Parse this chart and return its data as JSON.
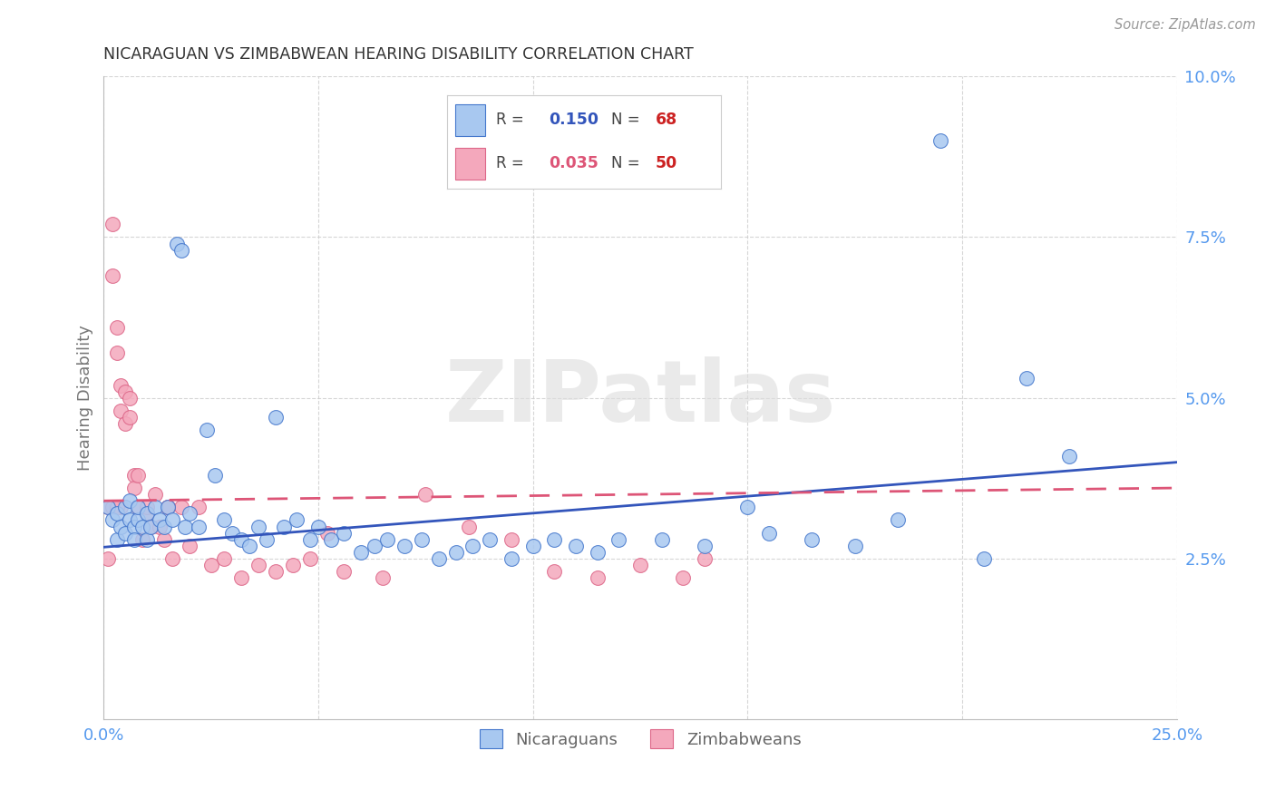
{
  "title": "NICARAGUAN VS ZIMBABWEAN HEARING DISABILITY CORRELATION CHART",
  "source": "Source: ZipAtlas.com",
  "ylabel_label": "Hearing Disability",
  "x_min": 0.0,
  "x_max": 0.25,
  "y_min": 0.0,
  "y_max": 0.1,
  "x_ticks": [
    0.0,
    0.05,
    0.1,
    0.15,
    0.2,
    0.25
  ],
  "x_tick_labels": [
    "0.0%",
    "",
    "",
    "",
    "",
    "25.0%"
  ],
  "y_ticks": [
    0.025,
    0.05,
    0.075,
    0.1
  ],
  "y_tick_labels": [
    "2.5%",
    "5.0%",
    "7.5%",
    "10.0%"
  ],
  "nic_color": "#A8C8F0",
  "zim_color": "#F4A8BC",
  "nic_edge_color": "#4477CC",
  "zim_edge_color": "#DD6688",
  "nic_line_color": "#3355BB",
  "zim_line_color": "#DD5577",
  "watermark_text": "ZIPatlas",
  "watermark_color": "#DDDDDD",
  "background_color": "#FFFFFF",
  "grid_color": "#CCCCCC",
  "title_color": "#333333",
  "tick_label_color": "#5599EE",
  "legend_R_color_nic": "#3355BB",
  "legend_R_color_zim": "#DD5577",
  "legend_N_color": "#CC2222",
  "nic_x": [
    0.001,
    0.002,
    0.003,
    0.003,
    0.004,
    0.005,
    0.005,
    0.006,
    0.006,
    0.007,
    0.007,
    0.008,
    0.008,
    0.009,
    0.01,
    0.01,
    0.011,
    0.012,
    0.013,
    0.014,
    0.015,
    0.016,
    0.017,
    0.018,
    0.019,
    0.02,
    0.022,
    0.024,
    0.026,
    0.028,
    0.03,
    0.032,
    0.034,
    0.036,
    0.038,
    0.04,
    0.042,
    0.045,
    0.048,
    0.05,
    0.053,
    0.056,
    0.06,
    0.063,
    0.066,
    0.07,
    0.074,
    0.078,
    0.082,
    0.086,
    0.09,
    0.095,
    0.1,
    0.105,
    0.11,
    0.115,
    0.12,
    0.13,
    0.14,
    0.15,
    0.155,
    0.165,
    0.175,
    0.185,
    0.195,
    0.205,
    0.215,
    0.225
  ],
  "nic_y": [
    0.033,
    0.031,
    0.028,
    0.032,
    0.03,
    0.033,
    0.029,
    0.031,
    0.034,
    0.03,
    0.028,
    0.031,
    0.033,
    0.03,
    0.032,
    0.028,
    0.03,
    0.033,
    0.031,
    0.03,
    0.033,
    0.031,
    0.074,
    0.073,
    0.03,
    0.032,
    0.03,
    0.045,
    0.038,
    0.031,
    0.029,
    0.028,
    0.027,
    0.03,
    0.028,
    0.047,
    0.03,
    0.031,
    0.028,
    0.03,
    0.028,
    0.029,
    0.026,
    0.027,
    0.028,
    0.027,
    0.028,
    0.025,
    0.026,
    0.027,
    0.028,
    0.025,
    0.027,
    0.028,
    0.027,
    0.026,
    0.028,
    0.028,
    0.027,
    0.033,
    0.029,
    0.028,
    0.027,
    0.031,
    0.09,
    0.025,
    0.053,
    0.041
  ],
  "zim_x": [
    0.001,
    0.001,
    0.002,
    0.002,
    0.003,
    0.003,
    0.004,
    0.004,
    0.004,
    0.005,
    0.005,
    0.006,
    0.006,
    0.007,
    0.007,
    0.008,
    0.008,
    0.009,
    0.01,
    0.011,
    0.012,
    0.013,
    0.014,
    0.015,
    0.016,
    0.018,
    0.02,
    0.022,
    0.025,
    0.028,
    0.032,
    0.036,
    0.04,
    0.044,
    0.048,
    0.052,
    0.056,
    0.065,
    0.075,
    0.085,
    0.095,
    0.105,
    0.115,
    0.125,
    0.135,
    0.14,
    0.002,
    0.003,
    0.01,
    0.015
  ],
  "zim_y": [
    0.033,
    0.025,
    0.077,
    0.069,
    0.061,
    0.057,
    0.052,
    0.048,
    0.033,
    0.051,
    0.046,
    0.05,
    0.047,
    0.038,
    0.036,
    0.038,
    0.033,
    0.028,
    0.032,
    0.03,
    0.035,
    0.03,
    0.028,
    0.033,
    0.025,
    0.033,
    0.027,
    0.033,
    0.024,
    0.025,
    0.022,
    0.024,
    0.023,
    0.024,
    0.025,
    0.029,
    0.023,
    0.022,
    0.035,
    0.03,
    0.028,
    0.023,
    0.022,
    0.024,
    0.022,
    0.025,
    0.033,
    0.033,
    0.033,
    0.033
  ]
}
